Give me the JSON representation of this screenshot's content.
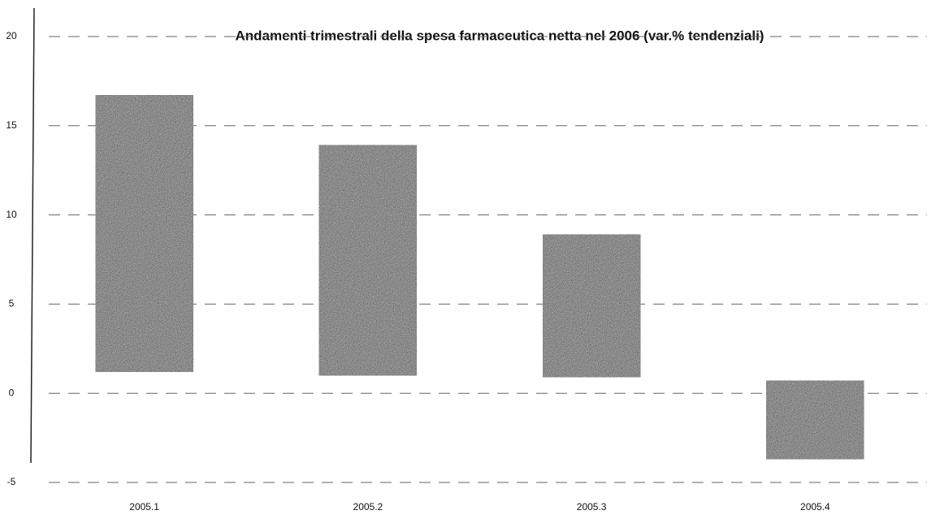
{
  "chart_data": {
    "type": "floating_bar",
    "title": "Andamenti trimestrali della spesa farmaceutica netta nel 2006 (var.% tendenziali)",
    "categories": [
      "2005.1",
      "2005.2",
      "2005.3",
      "2005.4"
    ],
    "ranges": [
      [
        1.2,
        16.7
      ],
      [
        1.0,
        13.9
      ],
      [
        0.9,
        8.9
      ],
      [
        -3.7,
        0.7
      ]
    ],
    "color": "#3a3a3a",
    "ylim": [
      -5,
      20
    ],
    "yticks": [
      -5,
      0,
      5,
      10,
      15,
      20
    ],
    "grid": true
  }
}
